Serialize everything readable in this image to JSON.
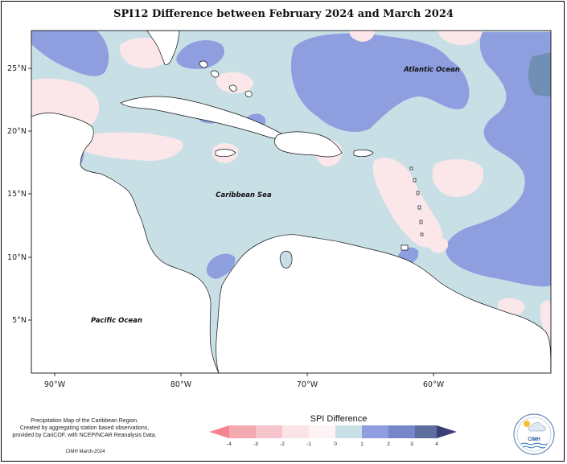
{
  "title": "SPI12 Difference between February 2024 and March 2024",
  "map": {
    "latitude_labels": [
      "25°N",
      "20°N",
      "15°N",
      "10°N",
      "5°N"
    ],
    "longitude_labels": [
      "90°W",
      "80°W",
      "70°W",
      "60°W"
    ],
    "ocean_labels": {
      "atlantic": "Atlantic Ocean",
      "caribbean": "Caribbean Sea",
      "pacific": "Pacific Ocean"
    },
    "colors": {
      "neutral": "#c9dfe6",
      "pos1": "#8e9edf",
      "pos2": "#7b8fd5",
      "pos3": "#6f8fb4",
      "neg": "#fbe7ea",
      "neg_strong": "#f7cdd4",
      "land": "#ffffff"
    }
  },
  "credit": {
    "line1": "Precipitation Map of the Caribbean Region.",
    "line2": "Created by aggregating station based observations,",
    "line3": "provided by CariCOF, with NCEP/NCAR Reanalysis Data.",
    "footer": "CIMH March-2024"
  },
  "legend": {
    "title": "SPI Difference",
    "ticks": [
      "-4",
      "-3",
      "-2",
      "-1",
      "0",
      "1",
      "2",
      "3",
      "4"
    ],
    "colors": [
      "#f4848d",
      "#f4a9b1",
      "#f5c5cb",
      "#fbe4e8",
      "#c9dfe6",
      "#8e9edf",
      "#7587c8",
      "#5c6e9c",
      "#3a3f78"
    ]
  },
  "logo": {
    "text": "CIMH"
  }
}
